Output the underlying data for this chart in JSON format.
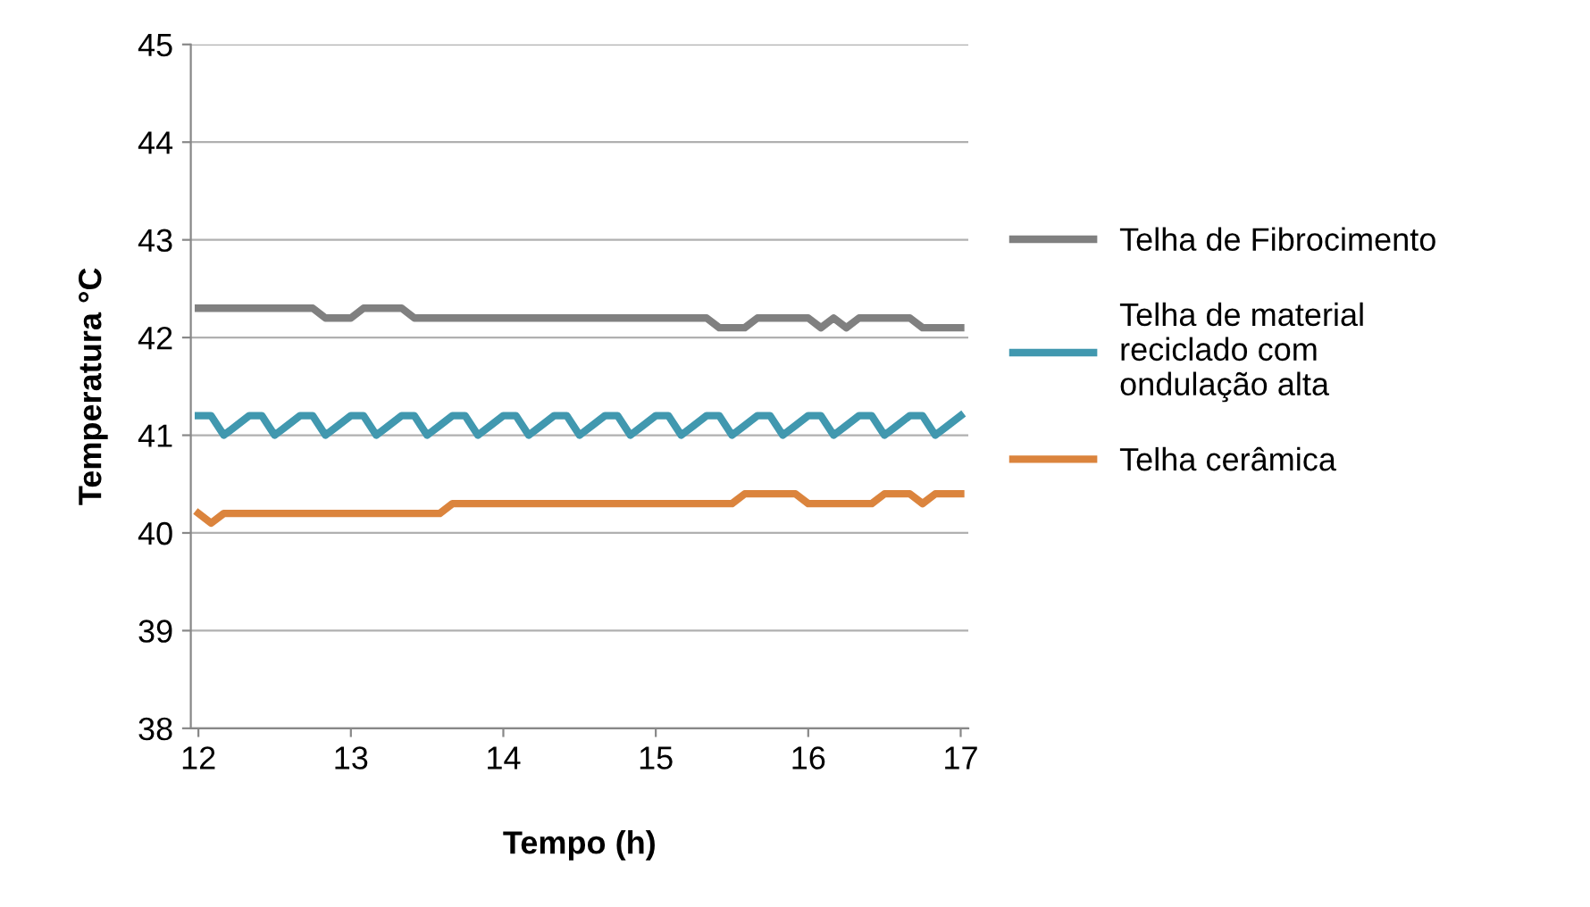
{
  "chart_data": {
    "type": "line",
    "xlabel": "Tempo (h)",
    "ylabel": "Temperatura °C",
    "x": [
      12,
      12.0833,
      12.1667,
      12.25,
      12.3333,
      12.4167,
      12.5,
      12.5833,
      12.6667,
      12.75,
      12.8333,
      12.9167,
      13,
      13.0833,
      13.1667,
      13.25,
      13.3333,
      13.4167,
      13.5,
      13.5833,
      13.6667,
      13.75,
      13.8333,
      13.9167,
      14,
      14.0833,
      14.1667,
      14.25,
      14.3333,
      14.4167,
      14.5,
      14.5833,
      14.6667,
      14.75,
      14.8333,
      14.9167,
      15,
      15.0833,
      15.1667,
      15.25,
      15.3333,
      15.4167,
      15.5,
      15.5833,
      15.6667,
      15.75,
      15.8333,
      15.9167,
      16,
      16.0833,
      16.1667,
      16.25,
      16.3333,
      16.4167,
      16.5,
      16.5833,
      16.6667,
      16.75,
      16.8333,
      16.9167,
      17
    ],
    "series": [
      {
        "name": "Telha de Fibrocimento",
        "color": "#808080",
        "values": [
          42.3,
          42.3,
          42.3,
          42.3,
          42.3,
          42.3,
          42.3,
          42.3,
          42.3,
          42.3,
          42.2,
          42.2,
          42.2,
          42.3,
          42.3,
          42.3,
          42.3,
          42.2,
          42.2,
          42.2,
          42.2,
          42.2,
          42.2,
          42.2,
          42.2,
          42.2,
          42.2,
          42.2,
          42.2,
          42.2,
          42.2,
          42.2,
          42.2,
          42.2,
          42.2,
          42.2,
          42.2,
          42.2,
          42.2,
          42.2,
          42.2,
          42.1,
          42.1,
          42.1,
          42.2,
          42.2,
          42.2,
          42.2,
          42.2,
          42.1,
          42.2,
          42.1,
          42.2,
          42.2,
          42.2,
          42.2,
          42.2,
          42.1,
          42.1,
          42.1,
          42.1
        ]
      },
      {
        "name": "Telha de material\nreciclado com\nondulação alta",
        "color": "#4198af",
        "values": [
          41.2,
          41.2,
          41.0,
          41.1,
          41.2,
          41.2,
          41.0,
          41.1,
          41.2,
          41.2,
          41.0,
          41.1,
          41.2,
          41.2,
          41.0,
          41.1,
          41.2,
          41.2,
          41.0,
          41.1,
          41.2,
          41.2,
          41.0,
          41.1,
          41.2,
          41.2,
          41.0,
          41.1,
          41.2,
          41.2,
          41.0,
          41.1,
          41.2,
          41.2,
          41.0,
          41.1,
          41.2,
          41.2,
          41.0,
          41.1,
          41.2,
          41.2,
          41.0,
          41.1,
          41.2,
          41.2,
          41.0,
          41.1,
          41.2,
          41.2,
          41.0,
          41.1,
          41.2,
          41.2,
          41.0,
          41.1,
          41.2,
          41.2,
          41.0,
          41.1,
          41.2
        ]
      },
      {
        "name": "Telha cerâmica",
        "color": "#db843d",
        "values": [
          40.2,
          40.1,
          40.2,
          40.2,
          40.2,
          40.2,
          40.2,
          40.2,
          40.2,
          40.2,
          40.2,
          40.2,
          40.2,
          40.2,
          40.2,
          40.2,
          40.2,
          40.2,
          40.2,
          40.2,
          40.3,
          40.3,
          40.3,
          40.3,
          40.3,
          40.3,
          40.3,
          40.3,
          40.3,
          40.3,
          40.3,
          40.3,
          40.3,
          40.3,
          40.3,
          40.3,
          40.3,
          40.3,
          40.3,
          40.3,
          40.3,
          40.3,
          40.3,
          40.4,
          40.4,
          40.4,
          40.4,
          40.4,
          40.3,
          40.3,
          40.3,
          40.3,
          40.3,
          40.3,
          40.4,
          40.4,
          40.4,
          40.3,
          40.4,
          40.4,
          40.4
        ]
      }
    ],
    "xlim": [
      11.95,
      17.05
    ],
    "xticks": [
      12,
      13,
      14,
      15,
      16,
      17
    ],
    "ylim": [
      38,
      45
    ],
    "yticks": [
      38,
      39,
      40,
      41,
      42,
      43,
      44,
      45
    ],
    "grid": "y",
    "legend": "right",
    "marker": "none",
    "line_style": "solid"
  }
}
